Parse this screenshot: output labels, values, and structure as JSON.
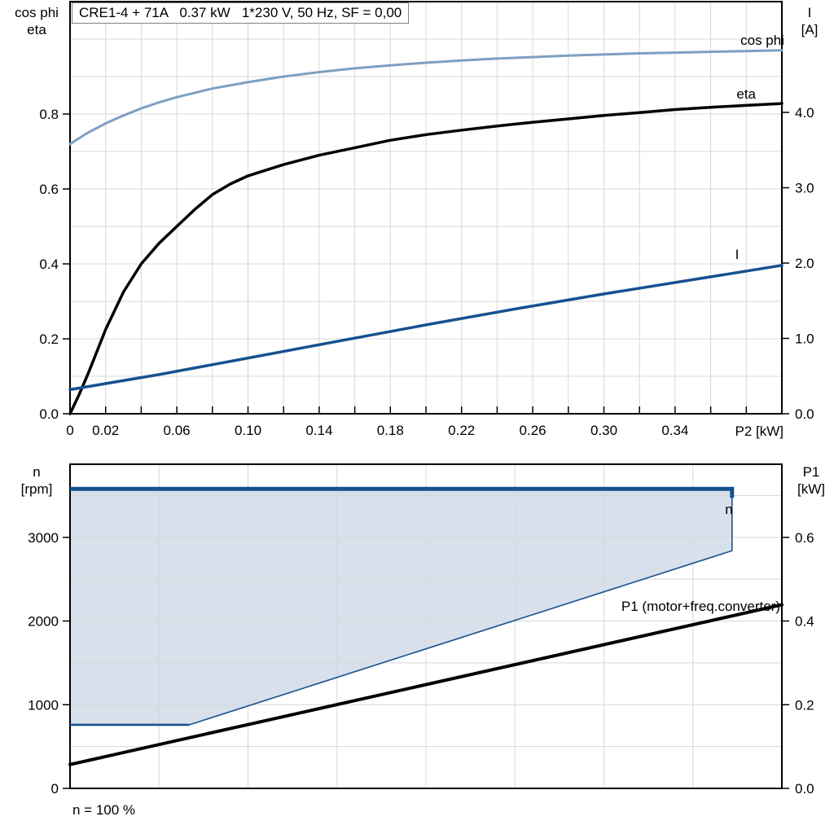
{
  "colors": {
    "cos_phi": "#7da0c2",
    "eta": "#000000",
    "current": "#175190",
    "envelope_fill": "#d7e0eb",
    "envelope_edge": "#175190",
    "p1_line": "#000000",
    "grid": "#d8d8d8",
    "axis": "#000000",
    "title_border": "#808080"
  },
  "chart_data": [
    {
      "type": "line",
      "title": "CRE1-4 + 71A   0.37 kW   1*230 V, 50 Hz, SF = 0,00",
      "xlabel": "P2 [kW]",
      "ylabel_left_lines": [
        "cos phi",
        "eta"
      ],
      "ylabel_right_lines": [
        "I",
        "[A]"
      ],
      "xlim": [
        0,
        0.4
      ],
      "ylim_left": [
        0,
        1.1
      ],
      "ylim_right": [
        0,
        5.5
      ],
      "grid": "on",
      "x_grid": {
        "from": 0.02,
        "to": 0.38,
        "step": 0.02
      },
      "y_grid": {
        "from": 0.1,
        "to": 1.0,
        "step": 0.1
      },
      "x_tick_labels": [
        [
          0,
          "0"
        ],
        [
          0.02,
          "0.02"
        ],
        [
          0.06,
          "0.06"
        ],
        [
          0.1,
          "0.10"
        ],
        [
          0.14,
          "0.14"
        ],
        [
          0.18,
          "0.18"
        ],
        [
          0.22,
          "0.22"
        ],
        [
          0.26,
          "0.26"
        ],
        [
          0.3,
          "0.30"
        ],
        [
          0.34,
          "0.34"
        ]
      ],
      "y_left_tick_labels": [
        [
          0,
          "0.0"
        ],
        [
          0.2,
          "0.2"
        ],
        [
          0.4,
          "0.4"
        ],
        [
          0.6,
          "0.6"
        ],
        [
          0.8,
          "0.8"
        ]
      ],
      "y_right_tick_labels": [
        [
          0,
          "0.0"
        ],
        [
          1,
          "1.0"
        ],
        [
          2,
          "2.0"
        ],
        [
          3,
          "3.0"
        ],
        [
          4,
          "4.0"
        ]
      ],
      "series": [
        {
          "name": "cos phi",
          "axis": "left",
          "color_key": "cos_phi",
          "width": 3,
          "x": [
            0,
            0.01,
            0.02,
            0.03,
            0.04,
            0.05,
            0.06,
            0.08,
            0.1,
            0.12,
            0.14,
            0.16,
            0.18,
            0.2,
            0.22,
            0.24,
            0.26,
            0.28,
            0.3,
            0.32,
            0.34,
            0.36,
            0.38,
            0.4
          ],
          "y": [
            0.72,
            0.75,
            0.775,
            0.796,
            0.815,
            0.831,
            0.845,
            0.868,
            0.885,
            0.9,
            0.912,
            0.922,
            0.93,
            0.937,
            0.943,
            0.948,
            0.952,
            0.956,
            0.959,
            0.962,
            0.964,
            0.966,
            0.968,
            0.97
          ]
        },
        {
          "name": "eta",
          "axis": "left",
          "color_key": "eta",
          "width": 3.5,
          "x": [
            0,
            0.005,
            0.01,
            0.015,
            0.02,
            0.03,
            0.04,
            0.05,
            0.06,
            0.07,
            0.08,
            0.09,
            0.1,
            0.12,
            0.14,
            0.16,
            0.18,
            0.2,
            0.22,
            0.24,
            0.26,
            0.28,
            0.3,
            0.32,
            0.34,
            0.36,
            0.38,
            0.4
          ],
          "y": [
            0,
            0.05,
            0.105,
            0.165,
            0.225,
            0.325,
            0.4,
            0.455,
            0.5,
            0.545,
            0.585,
            0.613,
            0.635,
            0.665,
            0.69,
            0.71,
            0.73,
            0.745,
            0.757,
            0.768,
            0.778,
            0.787,
            0.796,
            0.804,
            0.812,
            0.818,
            0.823,
            0.828
          ]
        },
        {
          "name": "I",
          "axis": "right",
          "color_key": "current",
          "width": 3.5,
          "x": [
            0,
            0.05,
            0.1,
            0.15,
            0.2,
            0.25,
            0.3,
            0.35,
            0.4
          ],
          "y": [
            0.32,
            0.52,
            0.74,
            0.96,
            1.18,
            1.39,
            1.59,
            1.78,
            1.97
          ]
        }
      ]
    },
    {
      "type": "area",
      "ylabel_left_lines": [
        "n",
        "[rpm]"
      ],
      "ylabel_right_lines": [
        "P1",
        "[kW]"
      ],
      "xlim": [
        0,
        0.4
      ],
      "ylim_left": [
        0,
        3880
      ],
      "ylim_right": [
        0,
        0.776
      ],
      "grid": "on",
      "x_grid": {
        "from": 0.05,
        "to": 0.35,
        "step": 0.05
      },
      "y_grid": {
        "from": 500,
        "to": 3500,
        "step": 500
      },
      "y_left_tick_labels": [
        [
          0,
          "0"
        ],
        [
          1000,
          "1000"
        ],
        [
          2000,
          "2000"
        ],
        [
          3000,
          "3000"
        ]
      ],
      "y_right_tick_labels": [
        [
          0,
          "0.0"
        ],
        [
          0.2,
          "0.2"
        ],
        [
          0.4,
          "0.4"
        ],
        [
          0.6,
          "0.6"
        ]
      ],
      "envelope": {
        "label": "n",
        "max_speed_rpm": 3580,
        "min_speed_rpm": 760,
        "full_load_p2_kw": 0.372,
        "min_speed_at_full_load_rpm": 2840,
        "min_speed_line_end_p2_kw": 0.067
      },
      "p1_series": {
        "name": "P1 (motor+freq.converter)",
        "x": [
          0,
          0.4
        ],
        "p1_kw": [
          0.057,
          0.439
        ]
      },
      "footnote": "n = 100 %"
    }
  ]
}
